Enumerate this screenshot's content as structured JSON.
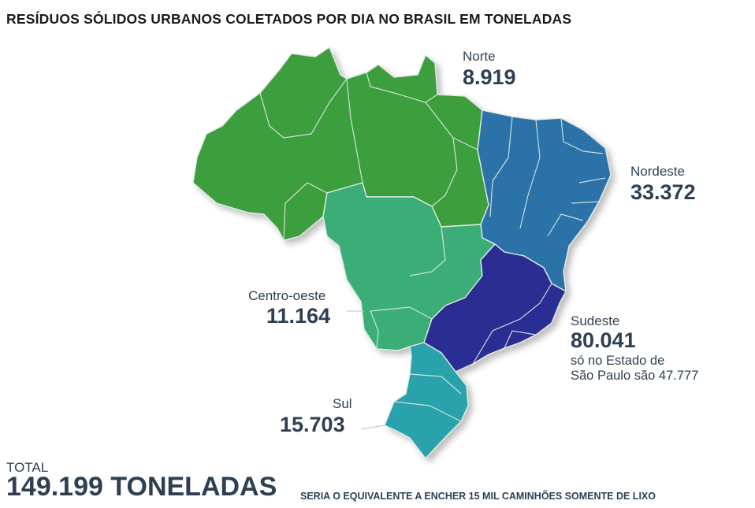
{
  "title": "RESÍDUOS SÓLIDOS URBANOS COLETADOS POR DIA NO BRASIL EM TONELADAS",
  "regions": {
    "norte": {
      "name": "Norte",
      "value": "8.919",
      "color": "#3c9e3c"
    },
    "nordeste": {
      "name": "Nordeste",
      "value": "33.372",
      "color": "#2a72a8"
    },
    "centro_oeste": {
      "name": "Centro-oeste",
      "value": "11.164",
      "color": "#3bae78"
    },
    "sudeste": {
      "name": "Sudeste",
      "value": "80.041",
      "color": "#2b2f92",
      "note_line1": "só no Estado de",
      "note_line2": "São Paulo são 47.777"
    },
    "sul": {
      "name": "Sul",
      "value": "15.703",
      "color": "#2aa2ac"
    }
  },
  "total": {
    "label": "TOTAL",
    "value": "149.199 TONELADAS",
    "note": "SERIA O EQUIVALENTE A ENCHER 15 MIL CAMINHÕES SOMENTE DE LIXO"
  }
}
